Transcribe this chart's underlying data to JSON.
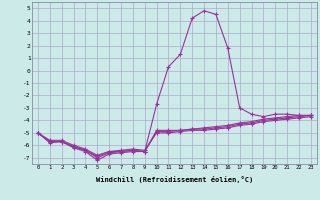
{
  "xlabel": "Windchill (Refroidissement éolien,°C)",
  "x": [
    0,
    1,
    2,
    3,
    4,
    5,
    6,
    7,
    8,
    9,
    10,
    11,
    12,
    13,
    14,
    15,
    16,
    17,
    18,
    19,
    20,
    21,
    22,
    23
  ],
  "line1": [
    -5.0,
    -5.8,
    -5.7,
    -6.2,
    -6.5,
    -7.2,
    -6.7,
    -6.6,
    -6.5,
    -6.5,
    -2.7,
    0.3,
    1.3,
    4.2,
    4.8,
    4.5,
    1.8,
    -3.0,
    -3.5,
    -3.7,
    -3.5,
    -3.5,
    -3.6,
    -3.6
  ],
  "line2": [
    -5.0,
    -5.7,
    -5.7,
    -6.1,
    -6.4,
    -7.0,
    -6.6,
    -6.5,
    -6.4,
    -6.5,
    -4.8,
    -4.8,
    -4.8,
    -4.7,
    -4.6,
    -4.5,
    -4.4,
    -4.2,
    -4.1,
    -3.9,
    -3.8,
    -3.7,
    -3.6,
    -3.6
  ],
  "line3": [
    -5.0,
    -5.7,
    -5.7,
    -6.1,
    -6.4,
    -6.9,
    -6.5,
    -6.5,
    -6.4,
    -6.5,
    -4.9,
    -4.9,
    -4.8,
    -4.7,
    -4.7,
    -4.6,
    -4.5,
    -4.3,
    -4.2,
    -4.0,
    -3.9,
    -3.8,
    -3.7,
    -3.6
  ],
  "line4": [
    -5.0,
    -5.6,
    -5.6,
    -6.0,
    -6.3,
    -6.8,
    -6.5,
    -6.4,
    -6.3,
    -6.4,
    -5.0,
    -5.0,
    -4.9,
    -4.8,
    -4.8,
    -4.7,
    -4.6,
    -4.4,
    -4.3,
    -4.1,
    -4.0,
    -3.9,
    -3.8,
    -3.7
  ],
  "line_color": "#993399",
  "bg_color": "#cceae8",
  "grid_color": "#aaaacc",
  "ylim": [
    -7.5,
    5.5
  ],
  "xlim": [
    -0.5,
    23.5
  ],
  "yticks": [
    -7,
    -6,
    -5,
    -4,
    -3,
    -2,
    -1,
    0,
    1,
    2,
    3,
    4,
    5
  ],
  "xticks": [
    0,
    1,
    2,
    3,
    4,
    5,
    6,
    7,
    8,
    9,
    10,
    11,
    12,
    13,
    14,
    15,
    16,
    17,
    18,
    19,
    20,
    21,
    22,
    23
  ],
  "markersize": 2.5,
  "linewidth": 0.8
}
